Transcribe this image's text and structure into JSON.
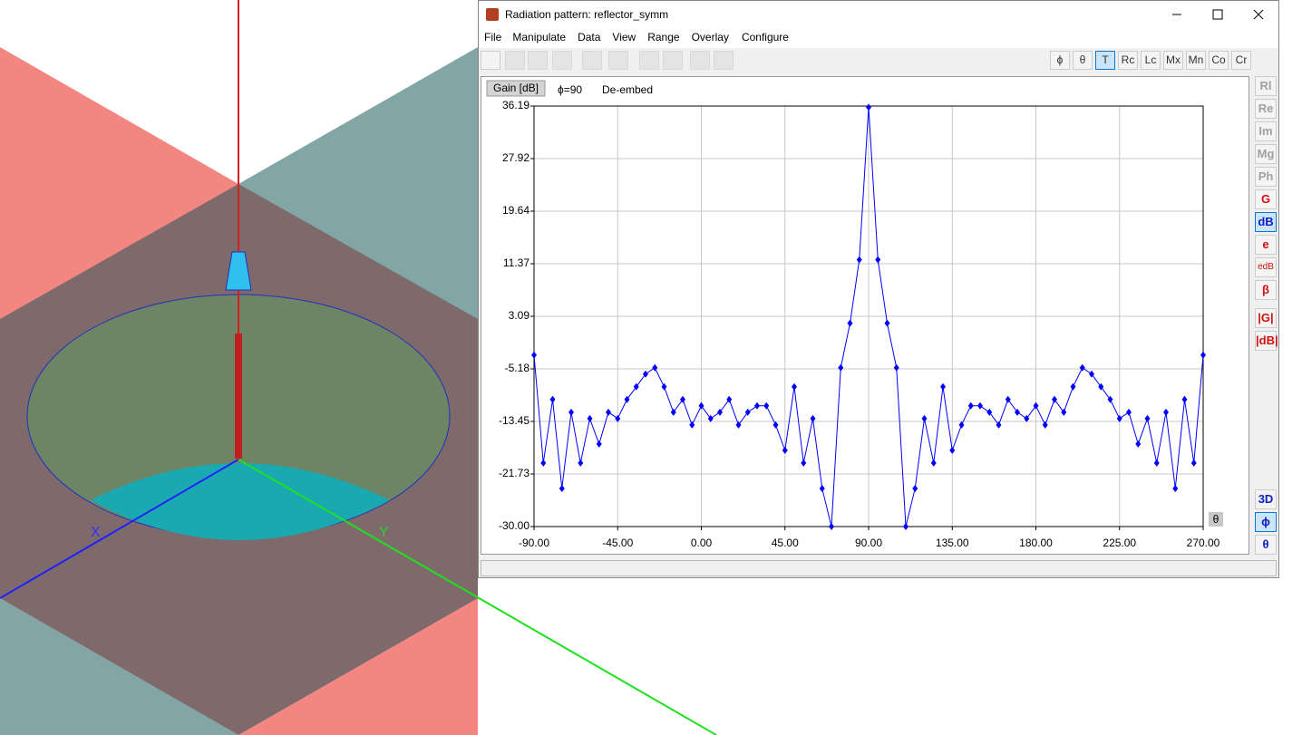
{
  "scene": {
    "axis_x": "X",
    "axis_y": "Y"
  },
  "window": {
    "title": "Radiation pattern: reflector_symm",
    "menu": [
      "File",
      "Manipulate",
      "Data",
      "View",
      "Range",
      "Overlay",
      "Configure"
    ],
    "toolbar_right": [
      "ϕ",
      "θ",
      "T",
      "Rc",
      "Lc",
      "Mx",
      "Mn",
      "Co",
      "Cr"
    ],
    "side_buttons": [
      "Rl",
      "Re",
      "Im",
      "Mg",
      "Ph",
      "G",
      "dB",
      "e",
      "edB",
      "β",
      "|G|",
      "|dB|"
    ],
    "side_bottom": [
      "3D",
      "ϕ",
      "θ"
    ]
  },
  "chart_data": {
    "type": "line",
    "quantity": "Gain [dB]",
    "cut": "ϕ=90",
    "mode": "De-embed",
    "xlabel": "θ",
    "x": [
      -90,
      -85,
      -80,
      -75,
      -70,
      -65,
      -60,
      -55,
      -50,
      -45,
      -40,
      -35,
      -30,
      -25,
      -20,
      -15,
      -10,
      -5,
      0,
      5,
      10,
      15,
      20,
      25,
      30,
      35,
      40,
      45,
      50,
      55,
      60,
      65,
      70,
      75,
      80,
      85,
      90,
      95,
      100,
      105,
      110,
      115,
      120,
      125,
      130,
      135,
      140,
      145,
      150,
      155,
      160,
      165,
      170,
      175,
      180,
      185,
      190,
      195,
      200,
      205,
      210,
      215,
      220,
      225,
      230,
      235,
      240,
      245,
      250,
      255,
      260,
      265,
      270
    ],
    "series": [
      {
        "name": "Gain",
        "color": "#0000ff",
        "values": [
          -3,
          -20,
          -10,
          -24,
          -12,
          -20,
          -13,
          -17,
          -12,
          -13,
          -10,
          -8,
          -6,
          -5,
          -8,
          -12,
          -10,
          -14,
          -11,
          -13,
          -12,
          -10,
          -14,
          -12,
          -11,
          -11,
          -14,
          -18,
          -8,
          -20,
          -13,
          -24,
          -30,
          -5,
          2,
          12,
          36,
          12,
          2,
          -5,
          -30,
          -24,
          -13,
          -20,
          -8,
          -18,
          -14,
          -11,
          -11,
          -12,
          -14,
          -10,
          -12,
          -13,
          -11,
          -14,
          -10,
          -12,
          -8,
          -5,
          -6,
          -8,
          -10,
          -13,
          -12,
          -17,
          -13,
          -20,
          -12,
          -24,
          -10,
          -20,
          -3
        ]
      }
    ],
    "xlim": [
      -90,
      270
    ],
    "xticks": [
      {
        "value": -90,
        "label": "-90.00"
      },
      {
        "value": -45,
        "label": "-45.00"
      },
      {
        "value": 0,
        "label": "0.00"
      },
      {
        "value": 45,
        "label": "45.00"
      },
      {
        "value": 90,
        "label": "90.00"
      },
      {
        "value": 135,
        "label": "135.00"
      },
      {
        "value": 180,
        "label": "180.00"
      },
      {
        "value": 225,
        "label": "225.00"
      },
      {
        "value": 270,
        "label": "270.00"
      }
    ],
    "ylim": [
      -30,
      36.19
    ],
    "yticks": [
      {
        "value": -30,
        "label": "-30.00"
      },
      -21.73,
      -13.45,
      -5.18,
      3.09,
      11.37,
      19.64,
      27.92,
      36.19
    ],
    "grid": true
  }
}
